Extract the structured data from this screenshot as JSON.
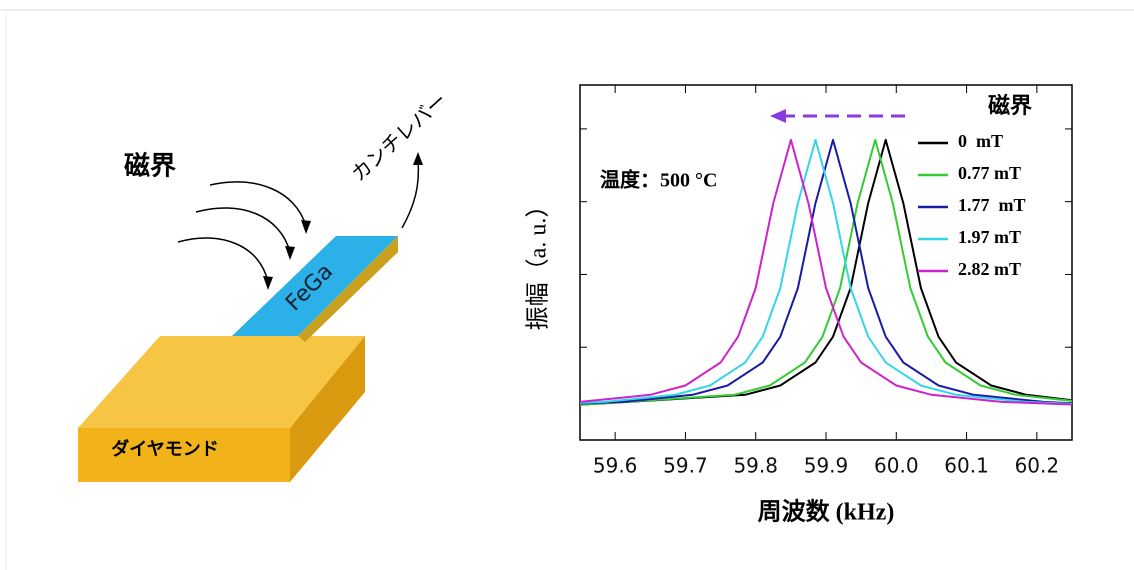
{
  "diagram": {
    "field_label": "磁界",
    "cantilever_label": "カンチレバー",
    "beam_label": "FeGa",
    "base_label": "ダイヤモンド"
  },
  "chart_data": {
    "type": "line",
    "x_label": "周波数 (kHz)",
    "y_label": "振幅（a. u.）",
    "annotation": "温度：500 °C",
    "legend_title": "磁界",
    "xlim": [
      59.55,
      60.25
    ],
    "ylim": [
      0,
      1.1
    ],
    "xticks": [
      59.6,
      59.7,
      59.8,
      59.9,
      {
        "value": 60,
        "label": "60.0"
      },
      60.1,
      60.2
    ],
    "series": [
      {
        "name": "0  mT",
        "color": "#000000",
        "x": [
          59.55,
          59.785,
          59.835,
          59.885,
          59.91,
          59.935,
          59.96,
          59.985,
          60.01,
          60.035,
          60.06,
          60.085,
          60.135,
          60.185,
          60.25
        ],
        "values": [
          0.109,
          0.14,
          0.169,
          0.24,
          0.32,
          0.471,
          0.734,
          0.93,
          0.734,
          0.471,
          0.32,
          0.24,
          0.169,
          0.14,
          0.123
        ]
      },
      {
        "name": "0.77 mT",
        "color": "#33cc33",
        "x": [
          59.55,
          59.77,
          59.82,
          59.87,
          59.895,
          59.92,
          59.945,
          59.97,
          59.995,
          60.02,
          60.045,
          60.07,
          60.12,
          60.17,
          60.25
        ],
        "values": [
          0.109,
          0.14,
          0.169,
          0.24,
          0.32,
          0.471,
          0.734,
          0.93,
          0.734,
          0.471,
          0.32,
          0.24,
          0.169,
          0.14,
          0.121
        ]
      },
      {
        "name": "1.77  mT",
        "color": "#1a1aa6",
        "x": [
          59.55,
          59.61,
          59.71,
          59.76,
          59.81,
          59.835,
          59.86,
          59.885,
          59.91,
          59.935,
          59.96,
          59.985,
          60.01,
          60.06,
          60.11,
          60.21,
          60.25
        ],
        "values": [
          0.113,
          0.118,
          0.14,
          0.169,
          0.24,
          0.32,
          0.471,
          0.734,
          0.93,
          0.734,
          0.471,
          0.32,
          0.24,
          0.169,
          0.14,
          0.118,
          0.114
        ]
      },
      {
        "name": "1.97 mT",
        "color": "#33d6e6",
        "x": [
          59.55,
          59.585,
          59.685,
          59.735,
          59.785,
          59.81,
          59.835,
          59.86,
          59.885,
          59.91,
          59.935,
          59.96,
          59.985,
          60.035,
          60.085,
          60.185,
          60.25
        ],
        "values": [
          0.115,
          0.118,
          0.14,
          0.169,
          0.24,
          0.32,
          0.471,
          0.734,
          0.93,
          0.734,
          0.471,
          0.32,
          0.24,
          0.169,
          0.14,
          0.118,
          0.112
        ]
      },
      {
        "name": "2.82 mT",
        "color": "#cc22cc",
        "x": [
          59.55,
          59.65,
          59.7,
          59.75,
          59.775,
          59.8,
          59.825,
          59.85,
          59.875,
          59.9,
          59.925,
          59.95,
          60.0,
          60.05,
          60.15,
          60.25
        ],
        "values": [
          0.118,
          0.14,
          0.169,
          0.24,
          0.32,
          0.471,
          0.734,
          0.93,
          0.734,
          0.471,
          0.32,
          0.24,
          0.169,
          0.14,
          0.118,
          0.11
        ]
      }
    ]
  }
}
